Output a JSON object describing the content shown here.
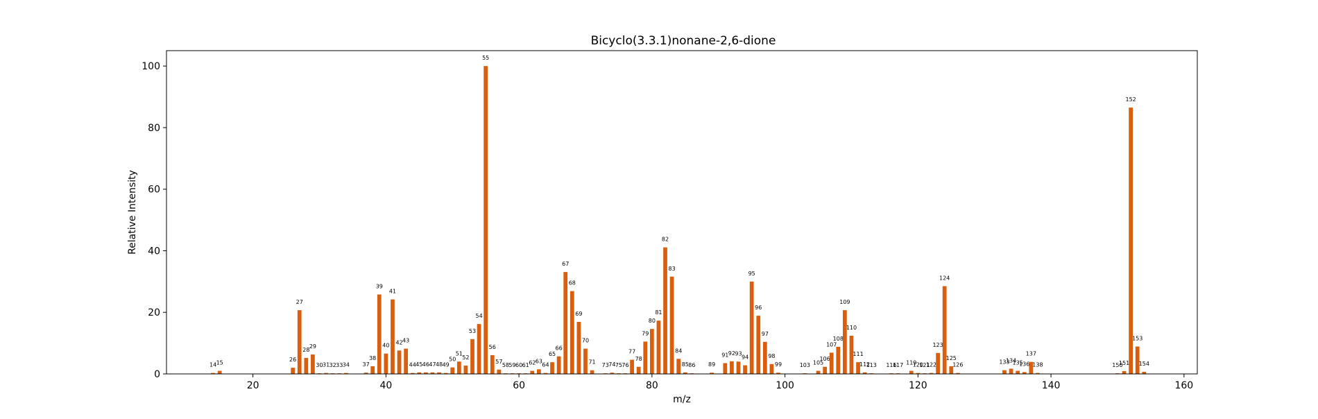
{
  "chart_data": {
    "type": "bar",
    "title": "Bicyclo(3.3.1)nonane-2,6-dione",
    "xlabel": "m/z",
    "ylabel": "Relative Intensity",
    "xlim": [
      7,
      162
    ],
    "ylim": [
      0,
      105
    ],
    "xticks": [
      20,
      40,
      60,
      80,
      100,
      120,
      140,
      160
    ],
    "yticks": [
      0,
      20,
      40,
      60,
      80,
      100
    ],
    "grid": false,
    "bar_color": "#d95f0e",
    "series": [
      {
        "x": [
          14,
          15,
          26,
          27,
          28,
          29,
          30,
          31,
          32,
          33,
          34,
          37,
          38,
          39,
          40,
          41,
          42,
          43,
          44,
          45,
          46,
          47,
          48,
          49,
          50,
          51,
          52,
          53,
          54,
          55,
          56,
          57,
          58,
          59,
          60,
          61,
          62,
          63,
          64,
          65,
          66,
          67,
          68,
          69,
          70,
          71,
          73,
          74,
          75,
          76,
          77,
          78,
          79,
          80,
          81,
          82,
          83,
          84,
          85,
          86,
          89,
          91,
          92,
          93,
          94,
          95,
          96,
          97,
          98,
          99,
          103,
          105,
          106,
          107,
          108,
          109,
          110,
          111,
          112,
          113,
          116,
          117,
          119,
          120,
          121,
          122,
          123,
          124,
          125,
          126,
          133,
          134,
          135,
          136,
          137,
          138,
          150,
          151,
          152,
          153,
          154
        ],
        "y": [
          0.3,
          1.0,
          2.0,
          20.7,
          5.2,
          6.3,
          0.2,
          0.3,
          0.2,
          0.2,
          0.3,
          0.4,
          2.5,
          25.8,
          6.6,
          24.2,
          7.6,
          8.2,
          0.3,
          0.5,
          0.5,
          0.5,
          0.5,
          0.3,
          2.1,
          4.0,
          2.7,
          11.3,
          16.2,
          100,
          6.1,
          1.4,
          0.2,
          0.2,
          0.2,
          0.2,
          1.0,
          1.5,
          0.3,
          3.8,
          5.7,
          33.1,
          26.9,
          16.9,
          8.2,
          1.2,
          0.2,
          0.4,
          0.2,
          0.2,
          4.6,
          2.3,
          10.5,
          14.6,
          17.3,
          41.1,
          31.6,
          4.9,
          0.5,
          0.2,
          0.4,
          3.5,
          4.1,
          4.0,
          2.8,
          30.0,
          18.9,
          10.4,
          3.2,
          0.4,
          0.2,
          1.0,
          2.3,
          6.9,
          8.8,
          20.7,
          12.4,
          3.8,
          0.5,
          0.2,
          0.2,
          0.2,
          1.0,
          0.3,
          0.2,
          0.3,
          6.8,
          28.5,
          2.5,
          0.3,
          1.2,
          1.7,
          1.0,
          0.6,
          3.9,
          0.3,
          0.2,
          0.9,
          86.5,
          8.9,
          0.7
        ]
      }
    ]
  }
}
